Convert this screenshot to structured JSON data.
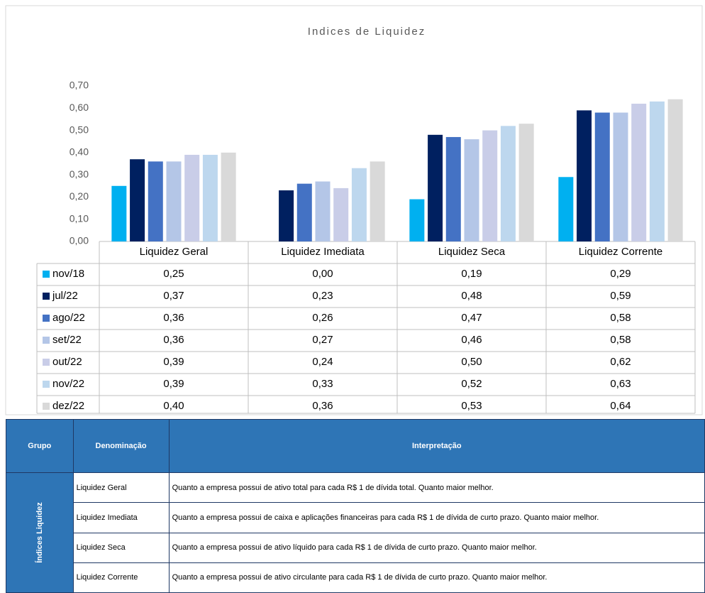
{
  "chart_data": {
    "type": "bar",
    "title": "Indices de Liquidez",
    "categories": [
      "Liquidez Geral",
      "Liquidez Imediata",
      "Liquidez Seca",
      "Liquidez Corrente"
    ],
    "series": [
      {
        "name": "nov/18",
        "color": "#00b0f0",
        "values": [
          0.25,
          0.0,
          0.19,
          0.29
        ],
        "value_labels": [
          "0,25",
          "0,00",
          "0,19",
          "0,29"
        ]
      },
      {
        "name": "jul/22",
        "color": "#002060",
        "values": [
          0.37,
          0.23,
          0.48,
          0.59
        ],
        "value_labels": [
          "0,37",
          "0,23",
          "0,48",
          "0,59"
        ]
      },
      {
        "name": "ago/22",
        "color": "#4472c4",
        "values": [
          0.36,
          0.26,
          0.47,
          0.58
        ],
        "value_labels": [
          "0,36",
          "0,26",
          "0,47",
          "0,58"
        ]
      },
      {
        "name": "set/22",
        "color": "#b4c6e7",
        "values": [
          0.36,
          0.27,
          0.46,
          0.58
        ],
        "value_labels": [
          "0,36",
          "0,27",
          "0,46",
          "0,58"
        ]
      },
      {
        "name": "out/22",
        "color": "#c9cde8",
        "values": [
          0.39,
          0.24,
          0.5,
          0.62
        ],
        "value_labels": [
          "0,39",
          "0,24",
          "0,50",
          "0,62"
        ]
      },
      {
        "name": "nov/22",
        "color": "#bdd7ee",
        "values": [
          0.39,
          0.33,
          0.52,
          0.63
        ],
        "value_labels": [
          "0,39",
          "0,33",
          "0,52",
          "0,63"
        ]
      },
      {
        "name": "dez/22",
        "color": "#d9d9d9",
        "values": [
          0.4,
          0.36,
          0.53,
          0.64
        ],
        "value_labels": [
          "0,40",
          "0,36",
          "0,53",
          "0,64"
        ]
      }
    ],
    "ylim": [
      0,
      0.7
    ],
    "yticks": [
      {
        "value": 0,
        "label": "0,00"
      },
      {
        "value": 0.1,
        "label": "0,10"
      },
      {
        "value": 0.2,
        "label": "0,20"
      },
      {
        "value": 0.3,
        "label": "0,30"
      },
      {
        "value": 0.4,
        "label": "0,40"
      },
      {
        "value": 0.5,
        "label": "0,50"
      },
      {
        "value": 0.6,
        "label": "0,60"
      },
      {
        "value": 0.7,
        "label": "0,70"
      }
    ],
    "grid": false
  },
  "table": {
    "header": [
      "Grupo",
      "Denominação",
      "Interpretação"
    ],
    "group": "Índices Liquidez",
    "rows": [
      [
        "Liquidez Geral",
        "Quanto a empresa possui de ativo total para cada R$ 1 de dívida total. Quanto maior melhor."
      ],
      [
        "Liquidez Imediata",
        "Quanto a empresa possui de caixa e aplicações financeiras para cada R$ 1 de dívida de curto prazo. Quanto maior melhor."
      ],
      [
        "Liquidez Seca",
        "Quanto a empresa possui de ativo líquido para cada R$ 1 de dívida de curto prazo. Quanto maior melhor."
      ],
      [
        "Liquidez Corrente",
        "Quanto a empresa possui de ativo circulante para cada R$ 1 de dívida de curto prazo. Quanto maior melhor."
      ]
    ]
  }
}
